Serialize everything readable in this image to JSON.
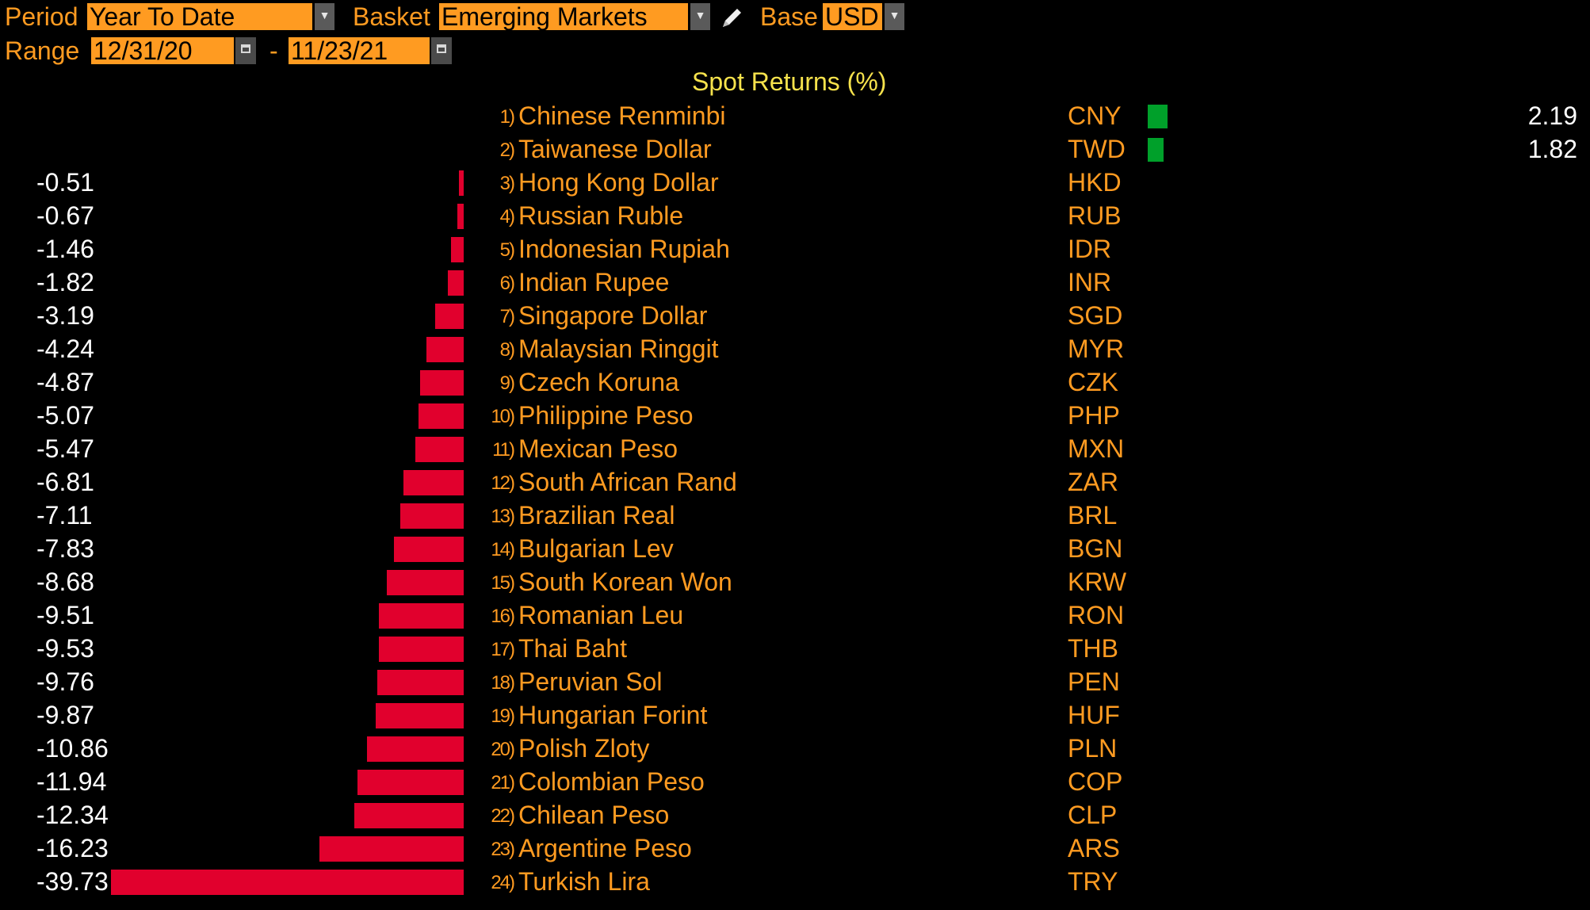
{
  "toolbar": {
    "period_label": "Period",
    "period_value": "Year To Date",
    "basket_label": "Basket",
    "basket_value": "Emerging Markets",
    "base_label": "Base",
    "base_value": "USD",
    "range_label": "Range",
    "range_start": "12/31/20",
    "range_separator": "-",
    "range_end": "11/23/21"
  },
  "colors": {
    "accent_orange": "#ff9b21",
    "title_yellow": "#f6e24c",
    "negative_red": "#e1002d",
    "positive_green": "#00a02a",
    "background": "#000000"
  },
  "icons": {
    "dropdown": "chevron-down-icon",
    "calendar": "calendar-icon",
    "edit": "pencil-icon"
  },
  "chart_data": {
    "type": "bar",
    "title": "Spot Returns (%)",
    "rows": [
      {
        "rank": "1)",
        "name": "Chinese Renminbi",
        "code": "CNY",
        "value": 2.19,
        "label": "2.19"
      },
      {
        "rank": "2)",
        "name": "Taiwanese Dollar",
        "code": "TWD",
        "value": 1.82,
        "label": "1.82"
      },
      {
        "rank": "3)",
        "name": "Hong Kong Dollar",
        "code": "HKD",
        "value": -0.51,
        "label": "-0.51"
      },
      {
        "rank": "4)",
        "name": "Russian Ruble",
        "code": "RUB",
        "value": -0.67,
        "label": "-0.67"
      },
      {
        "rank": "5)",
        "name": "Indonesian Rupiah",
        "code": "IDR",
        "value": -1.46,
        "label": "-1.46"
      },
      {
        "rank": "6)",
        "name": "Indian Rupee",
        "code": "INR",
        "value": -1.82,
        "label": "-1.82"
      },
      {
        "rank": "7)",
        "name": "Singapore Dollar",
        "code": "SGD",
        "value": -3.19,
        "label": "-3.19"
      },
      {
        "rank": "8)",
        "name": "Malaysian Ringgit",
        "code": "MYR",
        "value": -4.24,
        "label": "-4.24"
      },
      {
        "rank": "9)",
        "name": "Czech Koruna",
        "code": "CZK",
        "value": -4.87,
        "label": "-4.87"
      },
      {
        "rank": "10)",
        "name": "Philippine Peso",
        "code": "PHP",
        "value": -5.07,
        "label": "-5.07"
      },
      {
        "rank": "11)",
        "name": "Mexican Peso",
        "code": "MXN",
        "value": -5.47,
        "label": "-5.47"
      },
      {
        "rank": "12)",
        "name": "South African Rand",
        "code": "ZAR",
        "value": -6.81,
        "label": "-6.81"
      },
      {
        "rank": "13)",
        "name": "Brazilian Real",
        "code": "BRL",
        "value": -7.11,
        "label": "-7.11"
      },
      {
        "rank": "14)",
        "name": "Bulgarian Lev",
        "code": "BGN",
        "value": -7.83,
        "label": "-7.83"
      },
      {
        "rank": "15)",
        "name": "South Korean Won",
        "code": "KRW",
        "value": -8.68,
        "label": "-8.68"
      },
      {
        "rank": "16)",
        "name": "Romanian Leu",
        "code": "RON",
        "value": -9.51,
        "label": "-9.51"
      },
      {
        "rank": "17)",
        "name": "Thai Baht",
        "code": "THB",
        "value": -9.53,
        "label": "-9.53"
      },
      {
        "rank": "18)",
        "name": "Peruvian Sol",
        "code": "PEN",
        "value": -9.76,
        "label": "-9.76"
      },
      {
        "rank": "19)",
        "name": "Hungarian Forint",
        "code": "HUF",
        "value": -9.87,
        "label": "-9.87"
      },
      {
        "rank": "20)",
        "name": "Polish Zloty",
        "code": "PLN",
        "value": -10.86,
        "label": "-10.86"
      },
      {
        "rank": "21)",
        "name": "Colombian Peso",
        "code": "COP",
        "value": -11.94,
        "label": "-11.94"
      },
      {
        "rank": "22)",
        "name": "Chilean Peso",
        "code": "CLP",
        "value": -12.34,
        "label": "-12.34"
      },
      {
        "rank": "23)",
        "name": "Argentine Peso",
        "code": "ARS",
        "value": -16.23,
        "label": "-16.23"
      },
      {
        "rank": "24)",
        "name": "Turkish Lira",
        "code": "TRY",
        "value": -39.73,
        "label": "-39.73"
      }
    ]
  }
}
